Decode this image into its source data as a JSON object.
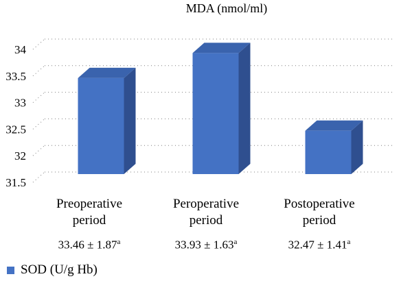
{
  "chart_data": {
    "type": "bar",
    "title": "MDA (nmol/ml)",
    "categories": [
      "Preoperative period",
      "Peroperative period",
      "Postoperative period"
    ],
    "category_lines": [
      [
        "Preoperative",
        "period"
      ],
      [
        "Peroperative",
        "period"
      ],
      [
        "Postoperative",
        "period"
      ]
    ],
    "values": [
      33.46,
      33.93,
      32.47
    ],
    "stat_labels": [
      "33.46 ± 1.87",
      "33.93 ± 1.63",
      "32.47 ± 1.41"
    ],
    "stat_superscript": "a",
    "series": [
      {
        "name": "SOD (U/g Hb)",
        "values": [
          33.46,
          33.93,
          32.47
        ]
      }
    ],
    "ylim": [
      31.5,
      34
    ],
    "yticks": [
      "31.5",
      "32",
      "32.5",
      "33",
      "33.5",
      "34"
    ],
    "grid": "dotted",
    "legend_position": "bottom-left",
    "style": "3d"
  },
  "colors": {
    "bar_front": "#4472c4",
    "bar_side": "#2f4f8f",
    "bar_top": "#3a63ad",
    "grid": "#7f7f7f"
  }
}
